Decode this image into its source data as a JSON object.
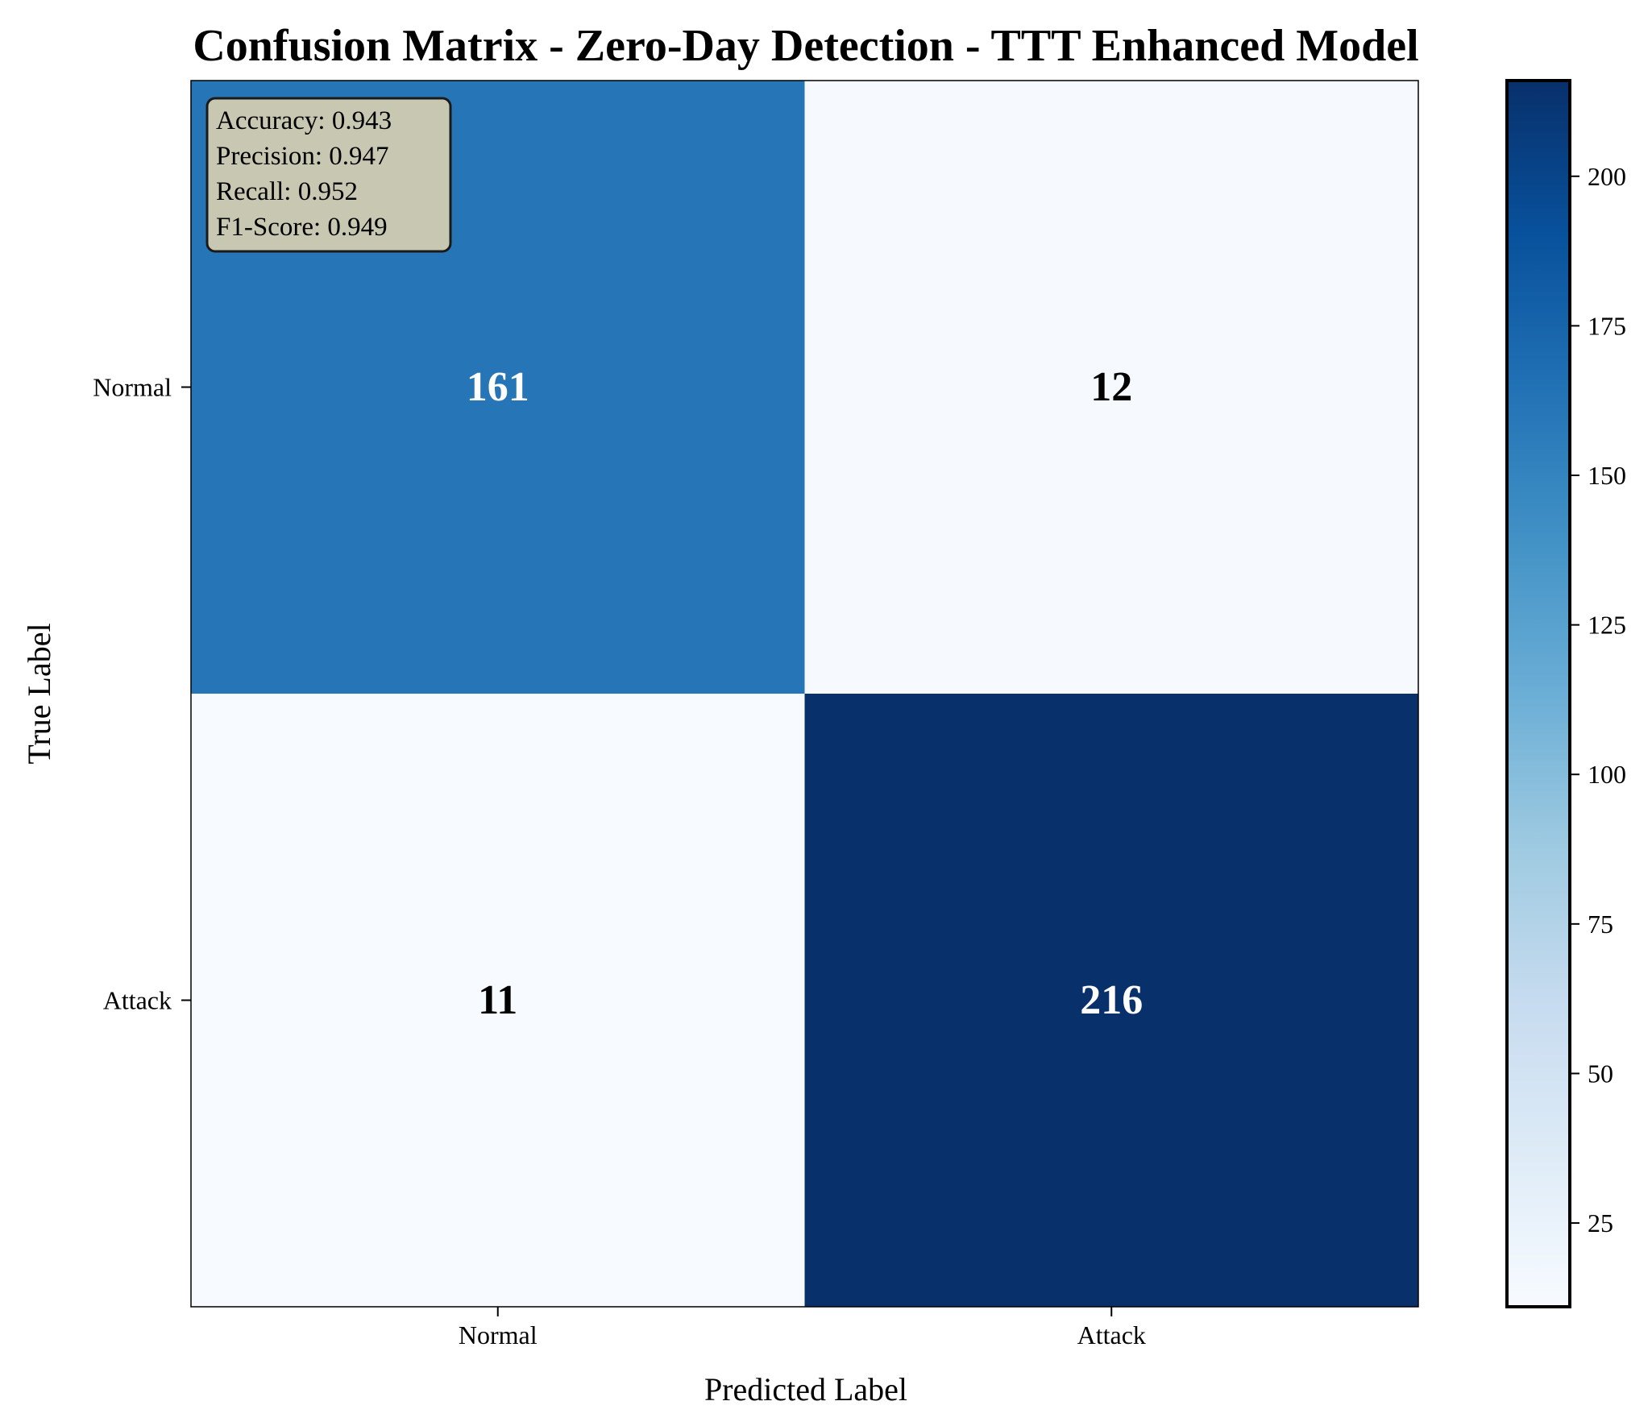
{
  "chart_data": {
    "type": "heatmap",
    "title": "Confusion Matrix - Zero-Day Detection - TTT Enhanced Model",
    "xlabel": "Predicted Label",
    "ylabel": "True Label",
    "x_categories": [
      "Normal",
      "Attack"
    ],
    "y_categories": [
      "Normal",
      "Attack"
    ],
    "values": [
      [
        161,
        12
      ],
      [
        11,
        216
      ]
    ],
    "colormap": "Blues",
    "colorbar": {
      "min": 11,
      "max": 216,
      "ticks": [
        25,
        50,
        75,
        100,
        125,
        150,
        175,
        200
      ]
    },
    "metrics_box": {
      "lines": [
        "Accuracy: 0.943",
        "Precision: 0.947",
        "Recall: 0.952",
        "F1-Score: 0.949"
      ],
      "placement": "top-left",
      "background": "#c8c7b1"
    },
    "cell_label_colors": {
      "dark_cell": "#ffffff",
      "light_cell": "#000000"
    },
    "grid": false
  }
}
